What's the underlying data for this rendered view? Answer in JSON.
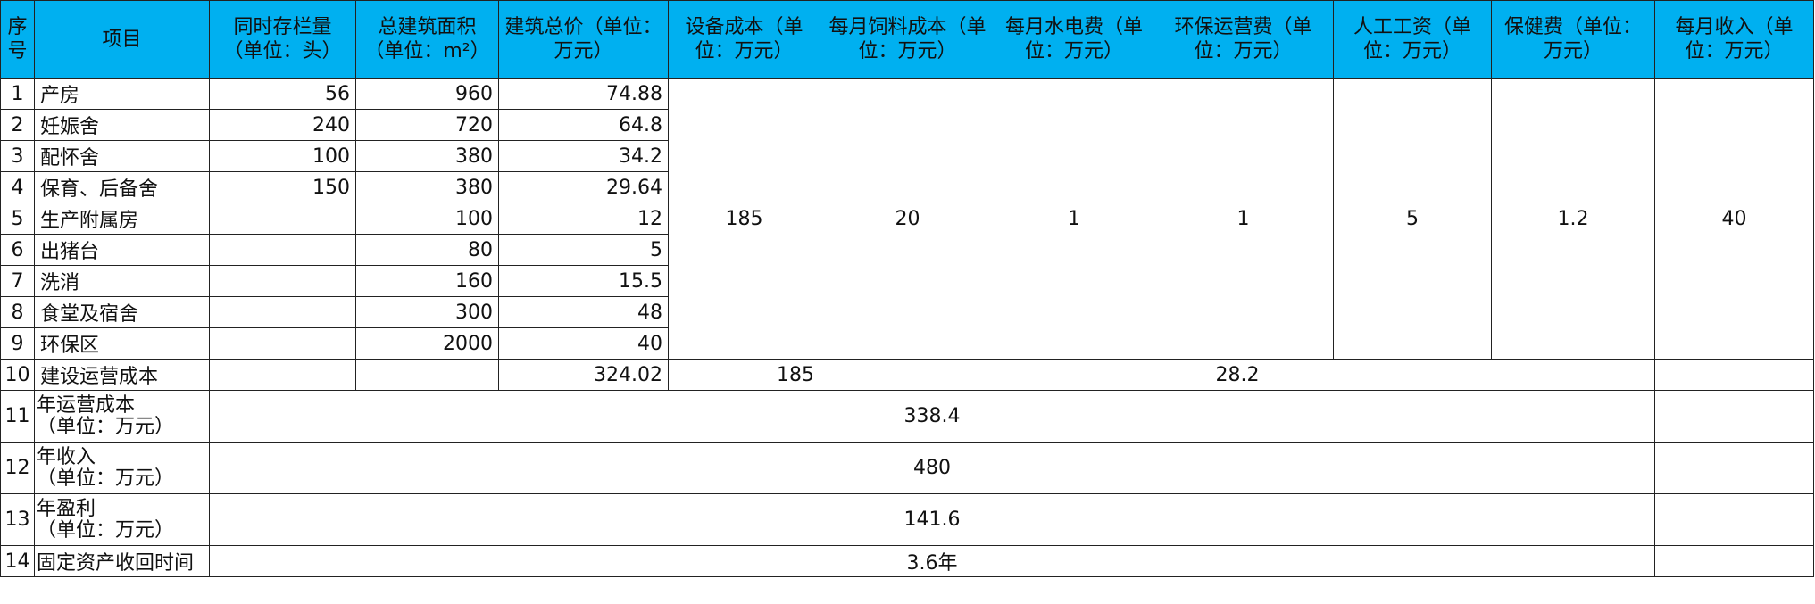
{
  "headers": [
    "序号",
    "项目",
    "同时存栏量（单位：头）",
    "总建筑面积（单位：m²）",
    "建筑总价（单位：万元）",
    "设备成本（单位：万元）",
    "每月饲料成本（单位：万元）",
    "每月水电费（单位：万元）",
    "环保运营费（单位：万元）",
    "人工工资（单位：万元）",
    "保健费（单位：万元）",
    "每月收入（单位：万元）"
  ],
  "rows": [
    {
      "no": "1",
      "item": "产房",
      "stock": "56",
      "area": "960",
      "price": "74.88"
    },
    {
      "no": "2",
      "item": "妊娠舍",
      "stock": "240",
      "area": "720",
      "price": "64.8"
    },
    {
      "no": "3",
      "item": "配怀舍",
      "stock": "100",
      "area": "380",
      "price": "34.2"
    },
    {
      "no": "4",
      "item": "保育、后备舍",
      "stock": "150",
      "area": "380",
      "price": "29.64"
    },
    {
      "no": "5",
      "item": "生产附属房",
      "stock": "",
      "area": "100",
      "price": "12"
    },
    {
      "no": "6",
      "item": "出猪台",
      "stock": "",
      "area": "80",
      "price": "5"
    },
    {
      "no": "7",
      "item": "洗消",
      "stock": "",
      "area": "160",
      "price": "15.5"
    },
    {
      "no": "8",
      "item": "食堂及宿舍",
      "stock": "",
      "area": "300",
      "price": "48"
    },
    {
      "no": "9",
      "item": "环保区",
      "stock": "",
      "area": "2000",
      "price": "40"
    }
  ],
  "merged": {
    "equipment": "185",
    "feed": "20",
    "utilities": "1",
    "env": "1",
    "labor": "5",
    "health": "1.2",
    "income": "40"
  },
  "row10": {
    "no": "10",
    "item": "建设运营成本",
    "price": "324.02",
    "equipment": "185",
    "monthly": "28.2"
  },
  "summary": [
    {
      "no": "11",
      "item": "年运营成本",
      "unit": "（单位：万元）",
      "value": "338.4"
    },
    {
      "no": "12",
      "item": "年收入",
      "unit": "（单位：万元）",
      "value": "480"
    },
    {
      "no": "13",
      "item": "年盈利",
      "unit": "（单位：万元）",
      "value": "141.6"
    }
  ],
  "row14": {
    "no": "14",
    "item": "固定资产收回时间",
    "value": "3.6年"
  }
}
